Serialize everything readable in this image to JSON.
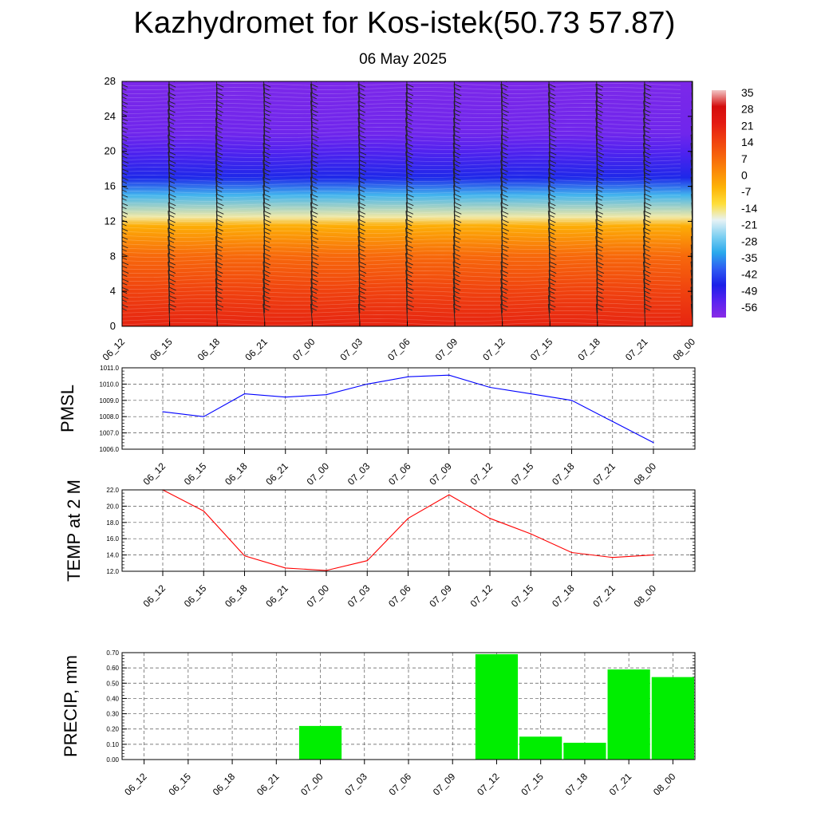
{
  "title": "Kazhydromet for Kos-istek(50.73 57.87)",
  "subtitle": "06 May 2025",
  "time_labels": [
    "06_12",
    "06_15",
    "06_18",
    "06_21",
    "07_00",
    "07_03",
    "07_06",
    "07_09",
    "07_12",
    "07_15",
    "07_18",
    "07_21",
    "08_00"
  ],
  "chart_data": [
    {
      "type": "heatmap",
      "title": "Kazhydromet for Kos-istek(50.73 57.87)",
      "subtitle": "06 May 2025",
      "x": [
        "06_12",
        "06_15",
        "06_18",
        "06_21",
        "07_00",
        "07_03",
        "07_06",
        "07_09",
        "07_12",
        "07_15",
        "07_18",
        "07_21",
        "08_00"
      ],
      "yticks": [
        "0",
        "4",
        "8",
        "12",
        "16",
        "20",
        "24",
        "28"
      ],
      "ylim": [
        0,
        28
      ],
      "colorbar_labels": [
        "35",
        "28",
        "21",
        "14",
        "7",
        "0",
        "-7",
        "-14",
        "-21",
        "-28",
        "-35",
        "-42",
        "-49",
        "-56"
      ],
      "colorbar_colors": [
        "#f2c6c6",
        "#d40d0d",
        "#e31a12",
        "#ef3d10",
        "#f6620c",
        "#fb8a08",
        "#fdb406",
        "#fede3a",
        "#e7f2f5",
        "#7fd0f2",
        "#2aa9ec",
        "#2d5cf2",
        "#1c1fe8",
        "#5a22f0",
        "#8a2be6"
      ],
      "profile": [
        {
          "y": 0,
          "t": 22
        },
        {
          "y": 4,
          "t": 16
        },
        {
          "y": 8,
          "t": 9
        },
        {
          "y": 11.5,
          "t": -3
        },
        {
          "y": 12.5,
          "t": -15
        },
        {
          "y": 15,
          "t": -30
        },
        {
          "y": 17,
          "t": -45
        },
        {
          "y": 20,
          "t": -52
        },
        {
          "y": 22,
          "t": -56
        },
        {
          "y": 28,
          "t": -58
        }
      ]
    },
    {
      "type": "line",
      "ylabel": "PMSL",
      "categories": [
        "06_12",
        "06_15",
        "06_18",
        "06_21",
        "07_00",
        "07_03",
        "07_06",
        "07_09",
        "07_12",
        "07_15",
        "07_18",
        "07_21",
        "08_00"
      ],
      "values": [
        1008.3,
        1008.0,
        1009.4,
        1009.2,
        1009.35,
        1010.0,
        1010.45,
        1010.55,
        1009.8,
        1009.4,
        1009.0,
        1007.7,
        1006.4
      ],
      "ylim": [
        1006.0,
        1011.0
      ],
      "yticks": [
        "1006.0",
        "1007.0",
        "1008.0",
        "1009.0",
        "1010.0",
        "1011.0"
      ],
      "color": "#0000ff",
      "grid": true
    },
    {
      "type": "line",
      "ylabel": "TEMP at 2 M",
      "categories": [
        "06_12",
        "06_15",
        "06_18",
        "06_21",
        "07_00",
        "07_03",
        "07_06",
        "07_09",
        "07_12",
        "07_15",
        "07_18",
        "07_21",
        "08_00"
      ],
      "values": [
        22.0,
        19.4,
        13.9,
        12.4,
        12.1,
        13.3,
        18.5,
        21.4,
        18.5,
        16.6,
        14.3,
        13.7,
        14.0
      ],
      "ylim": [
        12.0,
        22.0
      ],
      "yticks": [
        "12.0",
        "14.0",
        "16.0",
        "18.0",
        "20.0",
        "22.0"
      ],
      "color": "#ff0000",
      "grid": true
    },
    {
      "type": "bar",
      "ylabel": "PRECIP, mm",
      "categories": [
        "06_12",
        "06_15",
        "06_18",
        "06_21",
        "07_00",
        "07_03",
        "07_06",
        "07_09",
        "07_12",
        "07_15",
        "07_18",
        "07_21",
        "08_00"
      ],
      "values": [
        0,
        0,
        0,
        0,
        0.22,
        0,
        0,
        0,
        0.69,
        0.15,
        0.11,
        0.59,
        0.54
      ],
      "ylim": [
        0,
        0.7
      ],
      "yticks": [
        "0.00",
        "0.10",
        "0.20",
        "0.30",
        "0.40",
        "0.50",
        "0.60",
        "0.70"
      ],
      "color": "#00ee00",
      "grid": true
    }
  ]
}
